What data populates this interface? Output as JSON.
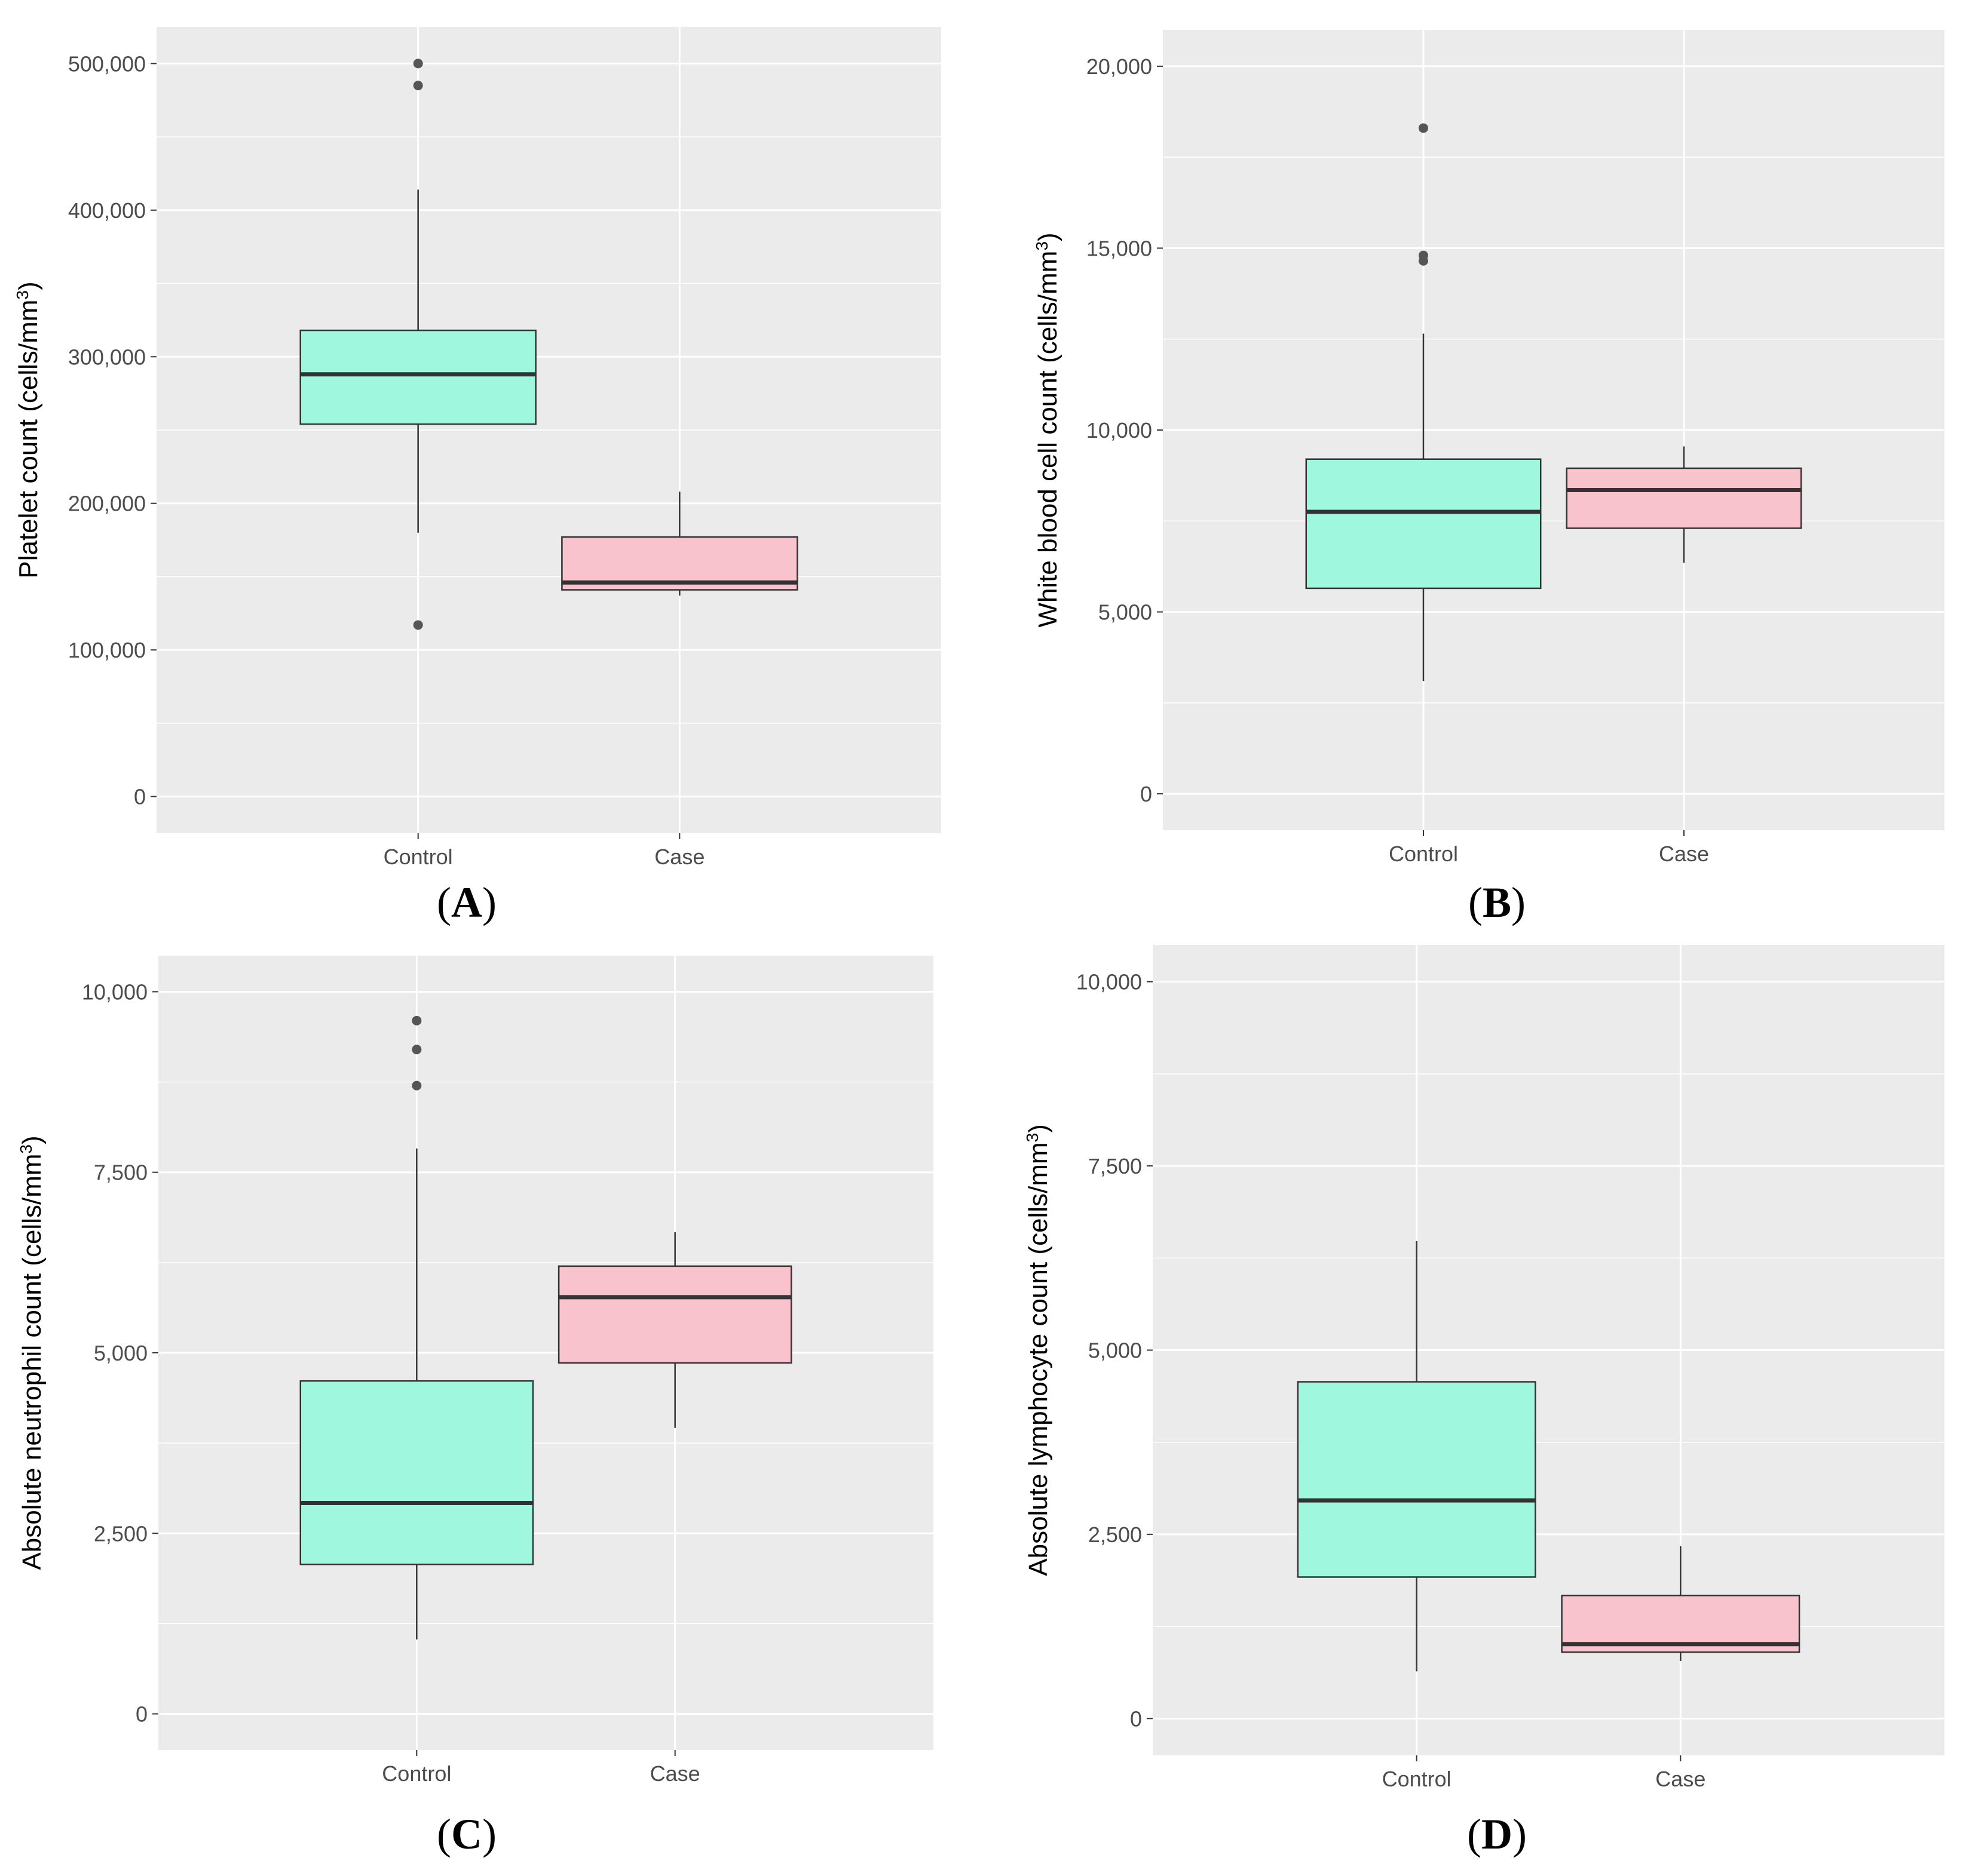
{
  "figure": {
    "panel_labels": [
      "(A)",
      "(B)",
      "(C)",
      "(D)"
    ]
  },
  "colors": {
    "panel_bg": "#ebebeb",
    "grid": "#ffffff",
    "control_fill": "#9ff8de",
    "case_fill": "#f8c3cc",
    "box_stroke": "#333333",
    "tick_text": "#4d4d4d",
    "outlier": "#555555"
  },
  "chart_data": [
    {
      "type": "boxplot",
      "panel": "A",
      "title": "",
      "xlabel": "",
      "ylabel": "Platelet count (cells/mm",
      "ylabel_sup": "3",
      "ylabel_close": ")",
      "categories": [
        "Control",
        "Case"
      ],
      "ylim": [
        -25000,
        525000
      ],
      "yticks": [
        0,
        100000,
        200000,
        300000,
        400000,
        500000
      ],
      "ytick_labels": [
        "0",
        "100,000",
        "200,000",
        "300,000",
        "400,000",
        "500,000"
      ],
      "boxes": [
        {
          "name": "Control",
          "whisker_low": 180000,
          "q1": 254000,
          "median": 288000,
          "q3": 318000,
          "whisker_high": 414000,
          "outliers": [
            117000,
            485000,
            500000
          ]
        },
        {
          "name": "Case",
          "whisker_low": 137000,
          "q1": 141000,
          "median": 146000,
          "q3": 177000,
          "whisker_high": 208000,
          "outliers": []
        }
      ]
    },
    {
      "type": "boxplot",
      "panel": "B",
      "title": "",
      "xlabel": "",
      "ylabel": "White blood cell count (cells/mm",
      "ylabel_sup": "3",
      "ylabel_close": ")",
      "categories": [
        "Control",
        "Case"
      ],
      "ylim": [
        -1000,
        21000
      ],
      "yticks": [
        0,
        5000,
        10000,
        15000,
        20000
      ],
      "ytick_labels": [
        "0",
        "5,000",
        "10,000",
        "15,000",
        "20,000"
      ],
      "boxes": [
        {
          "name": "Control",
          "whisker_low": 3100,
          "q1": 5650,
          "median": 7750,
          "q3": 9200,
          "whisker_high": 12650,
          "outliers": [
            14650,
            14800,
            18300
          ]
        },
        {
          "name": "Case",
          "whisker_low": 6350,
          "q1": 7300,
          "median": 8350,
          "q3": 8950,
          "whisker_high": 9550,
          "outliers": []
        }
      ]
    },
    {
      "type": "boxplot",
      "panel": "C",
      "title": "",
      "xlabel": "",
      "ylabel": "Absolute neutrophil count (cells/mm",
      "ylabel_sup": "3",
      "ylabel_close": ")",
      "categories": [
        "Control",
        "Case"
      ],
      "ylim": [
        -500,
        10500
      ],
      "yticks": [
        0,
        2500,
        5000,
        7500,
        10000
      ],
      "ytick_labels": [
        "0",
        "2,500",
        "5,000",
        "7,500",
        "10,000"
      ],
      "boxes": [
        {
          "name": "Control",
          "whisker_low": 1030,
          "q1": 2070,
          "median": 2920,
          "q3": 4610,
          "whisker_high": 7830,
          "outliers": [
            8700,
            9200,
            9600
          ]
        },
        {
          "name": "Case",
          "whisker_low": 3960,
          "q1": 4860,
          "median": 5770,
          "q3": 6200,
          "whisker_high": 6670,
          "outliers": []
        }
      ]
    },
    {
      "type": "boxplot",
      "panel": "D",
      "title": "",
      "xlabel": "",
      "ylabel": "Absolute lymphocyte count (cells/mm",
      "ylabel_sup": "3",
      "ylabel_close": ")",
      "categories": [
        "Control",
        "Case"
      ],
      "ylim": [
        -500,
        10500
      ],
      "yticks": [
        0,
        2500,
        5000,
        7500,
        10000
      ],
      "ytick_labels": [
        "0",
        "2,500",
        "5,000",
        "7,500",
        "10,000"
      ],
      "boxes": [
        {
          "name": "Control",
          "whisker_low": 640,
          "q1": 1920,
          "median": 2960,
          "q3": 4570,
          "whisker_high": 6480,
          "outliers": []
        },
        {
          "name": "Case",
          "whisker_low": 780,
          "q1": 900,
          "median": 1010,
          "q3": 1670,
          "whisker_high": 2340,
          "outliers": []
        }
      ]
    }
  ]
}
